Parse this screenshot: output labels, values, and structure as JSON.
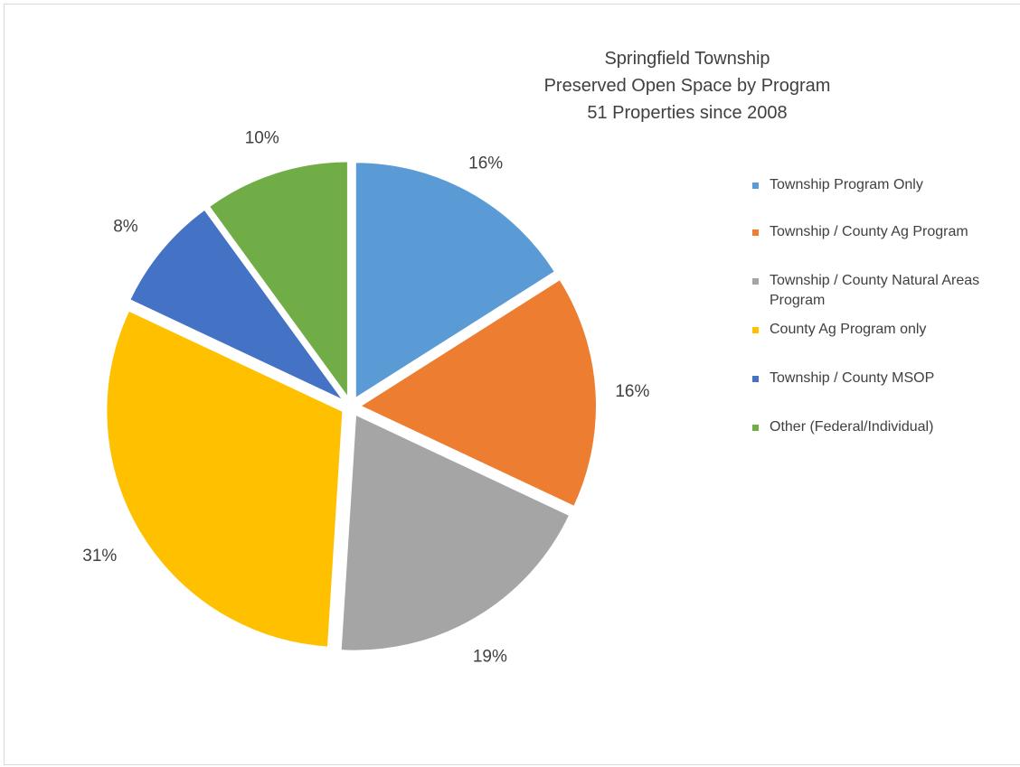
{
  "chart_data": {
    "type": "pie",
    "title": [
      "Springfield Township",
      "Preserved Open Space by Program",
      "51 Properties since 2008"
    ],
    "slices": [
      {
        "label": "Township Program Only",
        "value": 16,
        "display": "16%",
        "color": "#5b9bd5"
      },
      {
        "label": "Township / County Ag Program",
        "value": 16,
        "display": "16%",
        "color": "#ed7d31"
      },
      {
        "label": "Township / County Natural Areas Program",
        "value": 19,
        "display": "19%",
        "color": "#a5a5a5"
      },
      {
        "label": "County Ag Program only",
        "value": 31,
        "display": "31%",
        "color": "#ffc000"
      },
      {
        "label": "Township / County MSOP",
        "value": 8,
        "display": "8%",
        "color": "#4472c4"
      },
      {
        "label": "Other (Federal/Individual)",
        "value": 10,
        "display": "10%",
        "color": "#70ad47"
      }
    ],
    "legend_position": "right",
    "exploded": true
  }
}
